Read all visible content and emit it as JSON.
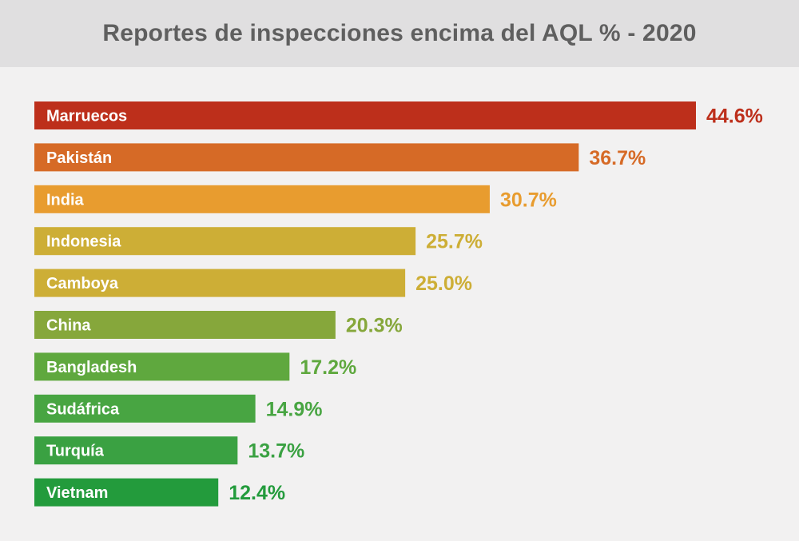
{
  "chart_data": {
    "type": "bar",
    "orientation": "horizontal",
    "title": "Reportes de inspecciones encima del AQL % - 2020",
    "categories": [
      "Marruecos",
      "Pakistán",
      "India",
      "Indonesia",
      "Camboya",
      "China",
      "Bangladesh",
      "Sudáfrica",
      "Turquía",
      "Vietnam"
    ],
    "values": [
      44.6,
      36.7,
      30.7,
      25.7,
      25.0,
      20.3,
      17.2,
      14.9,
      13.7,
      12.4
    ],
    "value_labels": [
      "44.6%",
      "36.7%",
      "30.7%",
      "25.7%",
      "25.0%",
      "20.3%",
      "17.2%",
      "14.9%",
      "13.7%",
      "12.4%"
    ],
    "colors": [
      "#bd2f1b",
      "#d66a26",
      "#e89c2f",
      "#cdae36",
      "#cdae36",
      "#86a73b",
      "#5fa83e",
      "#48a542",
      "#3aa142",
      "#239b3c"
    ],
    "xlim": [
      0,
      44.6
    ],
    "xlabel": "",
    "ylabel": "",
    "grid": false,
    "legend": "none"
  }
}
